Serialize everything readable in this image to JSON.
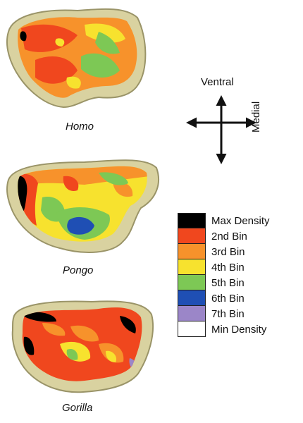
{
  "figure": {
    "species": {
      "homo": "Homo",
      "pongo": "Pongo",
      "gorilla": "Gorilla"
    },
    "orientation": {
      "up": "Ventral",
      "right": "Medial"
    },
    "legend": {
      "items": [
        {
          "label": "Max Density",
          "color": "#000000"
        },
        {
          "label": "2nd Bin",
          "color": "#f0471e"
        },
        {
          "label": "3rd Bin",
          "color": "#f7922b"
        },
        {
          "label": "4th Bin",
          "color": "#f7e22e"
        },
        {
          "label": "5th Bin",
          "color": "#7dc855"
        },
        {
          "label": "6th Bin",
          "color": "#1f4fb4"
        },
        {
          "label": "7th Bin",
          "color": "#9b86c8"
        },
        {
          "label": "Min Density",
          "color": "#ffffff"
        }
      ]
    },
    "colors": {
      "bone": "#d9d2a0",
      "bone_shadow": "#9a9468"
    }
  }
}
